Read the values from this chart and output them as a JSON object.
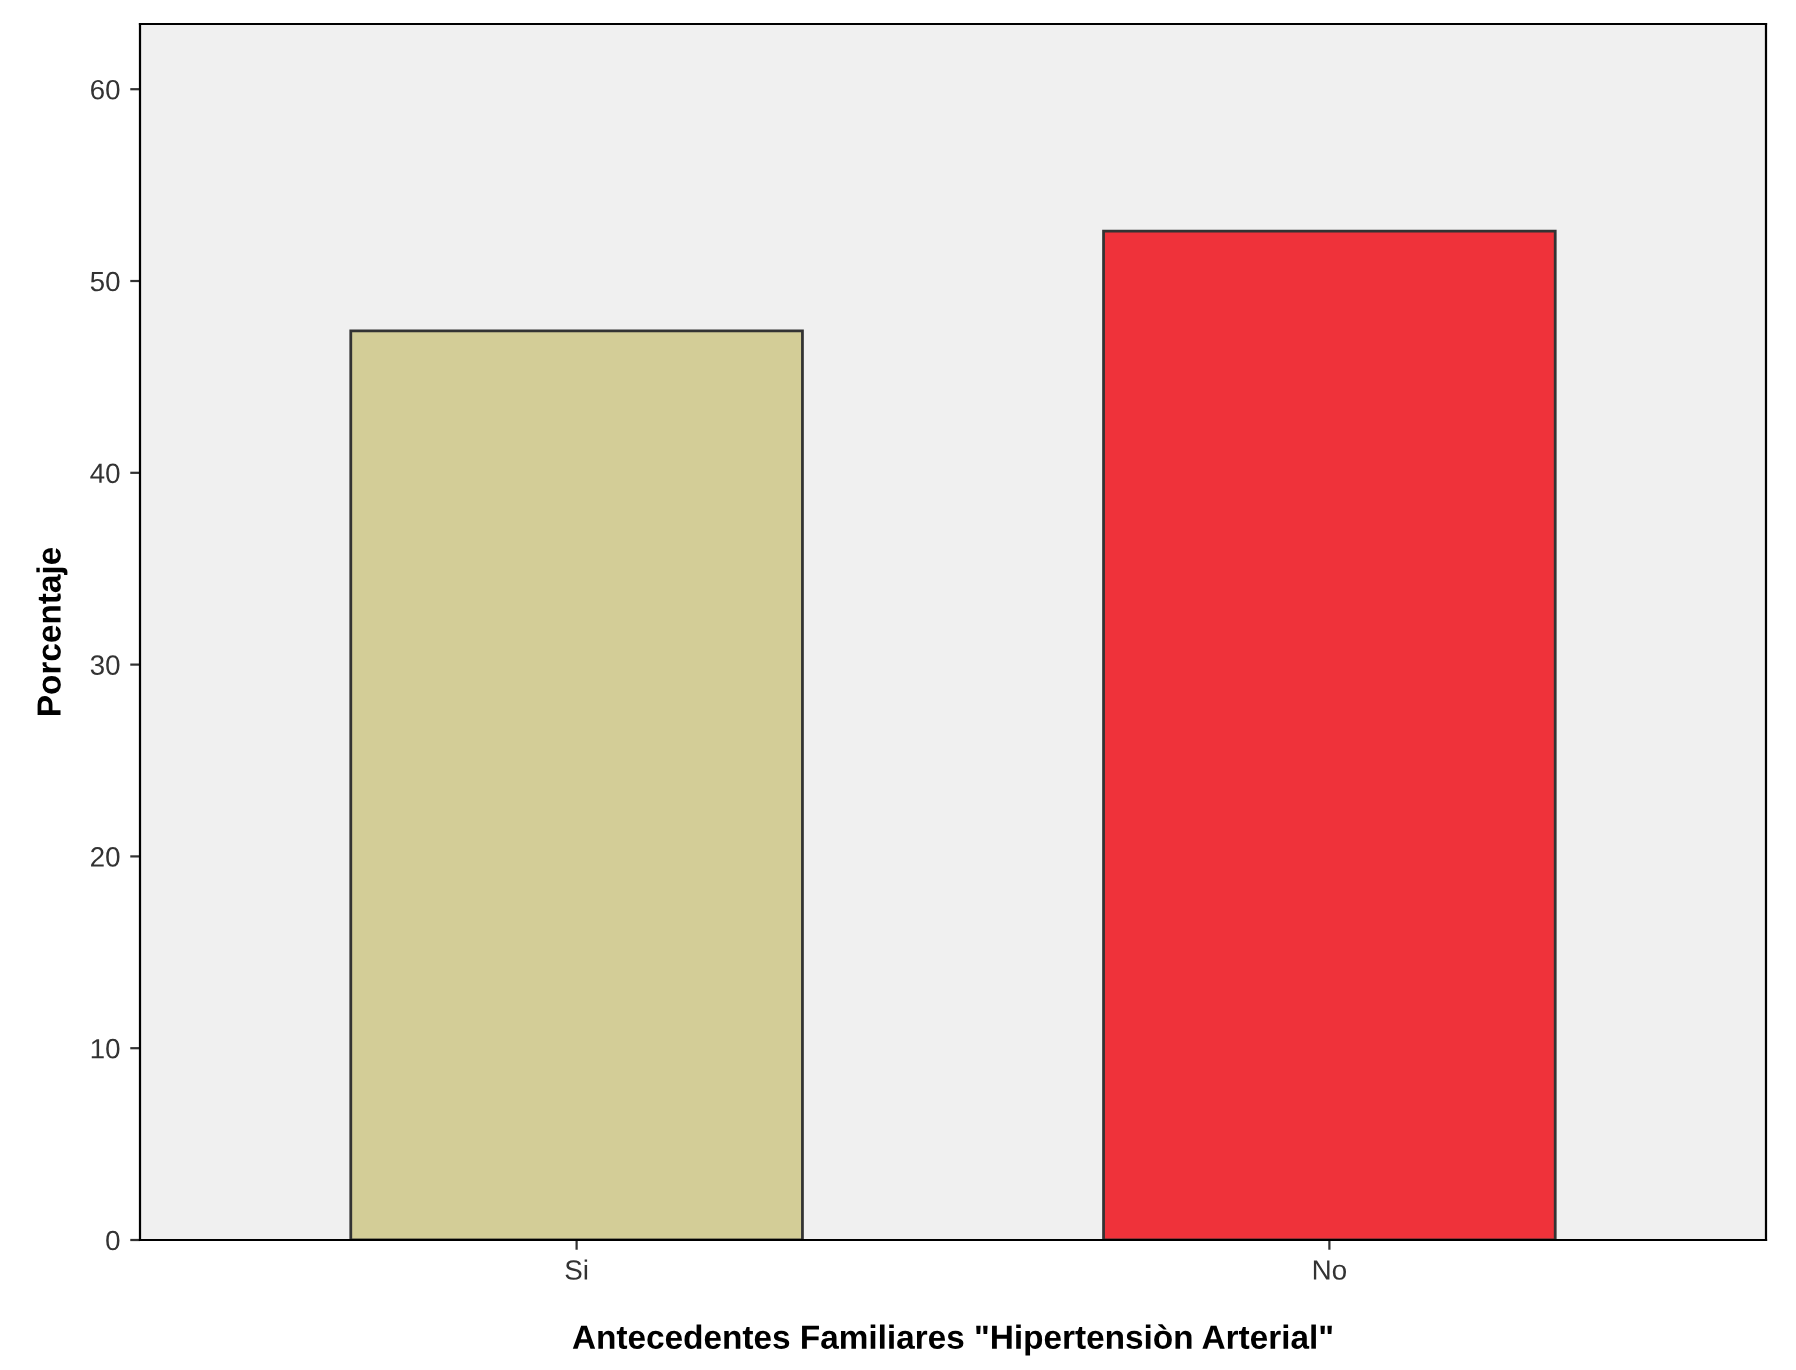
{
  "chart_data": {
    "type": "bar",
    "xlabel": "Antecedentes Familiares \"Hipertensiòn Arterial\"",
    "ylabel": "Porcentaje",
    "categories": [
      "Si",
      "No"
    ],
    "values": [
      47.4,
      52.6
    ],
    "colors": [
      "#d3cd97",
      "#ef323a"
    ],
    "ylim": [
      0,
      63.4
    ],
    "yticks": [
      0,
      10,
      20,
      30,
      40,
      50,
      60
    ],
    "grid": false,
    "legend": false
  }
}
